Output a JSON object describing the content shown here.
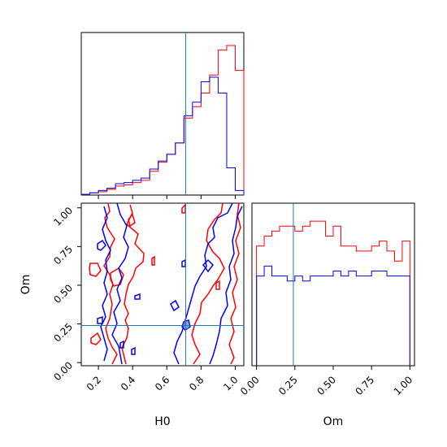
{
  "chart_data": [
    {
      "type": "histogram",
      "panel": "H0 marginal",
      "x_range": [
        0.1,
        1.05
      ],
      "truth_x": 0.71,
      "bins": [
        0.1,
        0.15,
        0.2,
        0.25,
        0.3,
        0.35,
        0.4,
        0.45,
        0.5,
        0.55,
        0.6,
        0.65,
        0.7,
        0.75,
        0.8,
        0.85,
        0.9,
        0.95,
        1.0,
        1.05
      ],
      "series": [
        {
          "color": "#ff0000",
          "counts": [
            0.3,
            1.0,
            1.5,
            2.5,
            4.0,
            4.5,
            5.5,
            6.5,
            10.5,
            14.5,
            18,
            23,
            34,
            39,
            45,
            53,
            64,
            66,
            55
          ]
        },
        {
          "color": "#0000ff",
          "counts": [
            0.3,
            1.0,
            2.0,
            3.0,
            5.0,
            5.5,
            6.5,
            7.5,
            11.5,
            15,
            18,
            23,
            35,
            41,
            50,
            52,
            45,
            12,
            2
          ]
        }
      ],
      "ticks": [
        0.2,
        0.4,
        0.6,
        0.8,
        1.0
      ]
    },
    {
      "type": "contour",
      "panel": "H0 vs Om",
      "xlabel": "H0",
      "ylabel": "Om",
      "x_range": [
        0.1,
        1.05
      ],
      "y_range": [
        -0.02,
        1.03
      ],
      "x_ticks": [
        "0.2",
        "0.4",
        "0.6",
        "0.8",
        "1.0"
      ],
      "y_ticks": [
        "0.00",
        "0.25",
        "0.50",
        "0.75",
        "1.00"
      ],
      "truth": {
        "x": 0.71,
        "y": 0.24
      },
      "series": [
        {
          "color": "#ff0000"
        },
        {
          "color": "#0000ff"
        }
      ]
    },
    {
      "type": "histogram",
      "panel": "Om marginal",
      "xlabel": "Om",
      "x_range": [
        -0.03,
        1.03
      ],
      "truth_x": 0.24,
      "bins": [
        0.0,
        0.05,
        0.1,
        0.15,
        0.2,
        0.25,
        0.3,
        0.35,
        0.4,
        0.45,
        0.5,
        0.55,
        0.6,
        0.65,
        0.7,
        0.75,
        0.8,
        0.85,
        0.9,
        0.95,
        1.0
      ],
      "series": [
        {
          "color": "#ff0000",
          "counts": [
            24,
            26,
            27,
            28,
            28,
            27,
            28,
            29,
            29,
            26,
            28,
            24,
            24,
            23,
            23,
            24,
            25,
            23,
            21,
            25
          ]
        },
        {
          "color": "#0000ff",
          "counts": [
            18,
            20,
            18,
            18,
            17,
            18,
            17,
            18,
            18,
            18,
            19,
            18,
            19,
            18,
            18,
            19,
            19,
            18,
            18,
            18
          ]
        }
      ],
      "x_ticks": [
        "0.00",
        "0.25",
        "0.50",
        "0.75",
        "1.00"
      ]
    }
  ]
}
